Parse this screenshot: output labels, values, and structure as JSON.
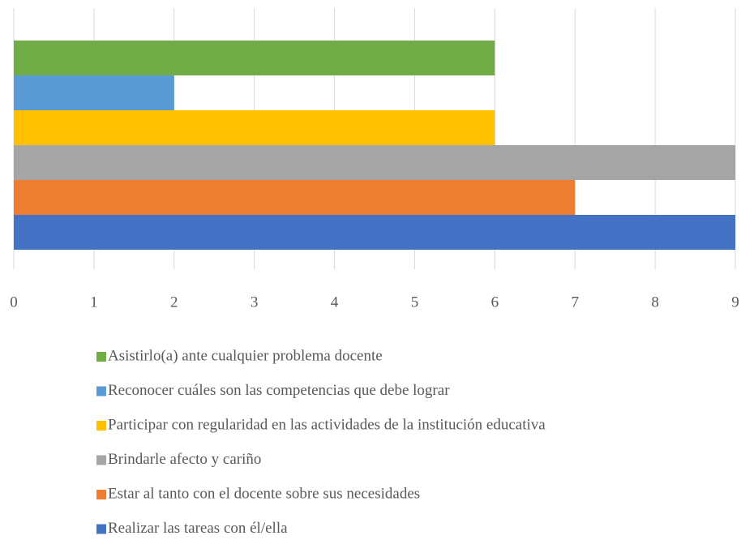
{
  "chart_data": {
    "type": "bar",
    "orientation": "horizontal",
    "series": [
      {
        "name": "Asistirlo(a) ante cualquier problema docente",
        "color": "#70ad47",
        "values": [
          6
        ]
      },
      {
        "name": "Reconocer cuáles son las competencias que debe lograr",
        "color": "#5b9bd5",
        "values": [
          2
        ]
      },
      {
        "name": "Participar con regularidad en las actividades de la institución educativa",
        "color": "#ffc000",
        "values": [
          6
        ]
      },
      {
        "name": "Brindarle afecto y cariño",
        "color": "#a5a5a5",
        "values": [
          9
        ]
      },
      {
        "name": "Estar al tanto con el docente sobre sus necesidades",
        "color": "#ed7d31",
        "values": [
          7
        ]
      },
      {
        "name": "Realizar las tareas con él/ella",
        "color": "#4472c4",
        "values": [
          9
        ]
      }
    ],
    "xlim": [
      0,
      9
    ],
    "xticks": [
      0,
      1,
      2,
      3,
      4,
      5,
      6,
      7,
      8,
      9
    ],
    "grid": true
  }
}
